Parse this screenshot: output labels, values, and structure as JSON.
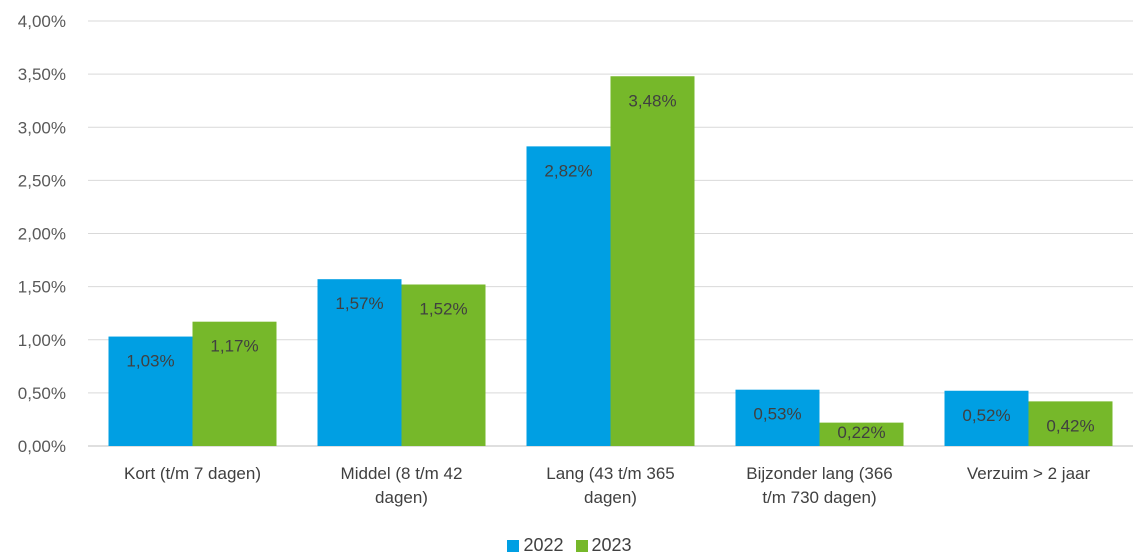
{
  "chart_data": {
    "type": "bar",
    "title": "",
    "xlabel": "",
    "ylabel": "",
    "ylim": [
      0,
      4.0
    ],
    "yticks": [
      {
        "value": 0.0,
        "label": "0,00%"
      },
      {
        "value": 0.5,
        "label": "0,50%"
      },
      {
        "value": 1.0,
        "label": "1,00%"
      },
      {
        "value": 1.5,
        "label": "1,50%"
      },
      {
        "value": 2.0,
        "label": "2,00%"
      },
      {
        "value": 2.5,
        "label": "2,50%"
      },
      {
        "value": 3.0,
        "label": "3,00%"
      },
      {
        "value": 3.5,
        "label": "3,50%"
      },
      {
        "value": 4.0,
        "label": "4,00%"
      }
    ],
    "categories": [
      [
        "Kort (t/m 7 dagen)"
      ],
      [
        "Middel (8 t/m 42",
        "dagen)"
      ],
      [
        "Lang (43 t/m 365",
        "dagen)"
      ],
      [
        "Bijzonder lang (366",
        "t/m 730 dagen)"
      ],
      [
        "Verzuim > 2 jaar"
      ]
    ],
    "series": [
      {
        "name": "2022",
        "color": "#009fe3",
        "values": [
          1.03,
          1.57,
          2.82,
          0.53,
          0.52
        ],
        "labels": [
          "1,03%",
          "1,57%",
          "2,82%",
          "0,53%",
          "0,52%"
        ]
      },
      {
        "name": "2023",
        "color": "#76b82a",
        "values": [
          1.17,
          1.52,
          3.48,
          0.22,
          0.42
        ],
        "labels": [
          "1,17%",
          "1,52%",
          "3,48%",
          "0,22%",
          "0,42%"
        ]
      }
    ],
    "grid": true,
    "legend_position": "bottom"
  }
}
